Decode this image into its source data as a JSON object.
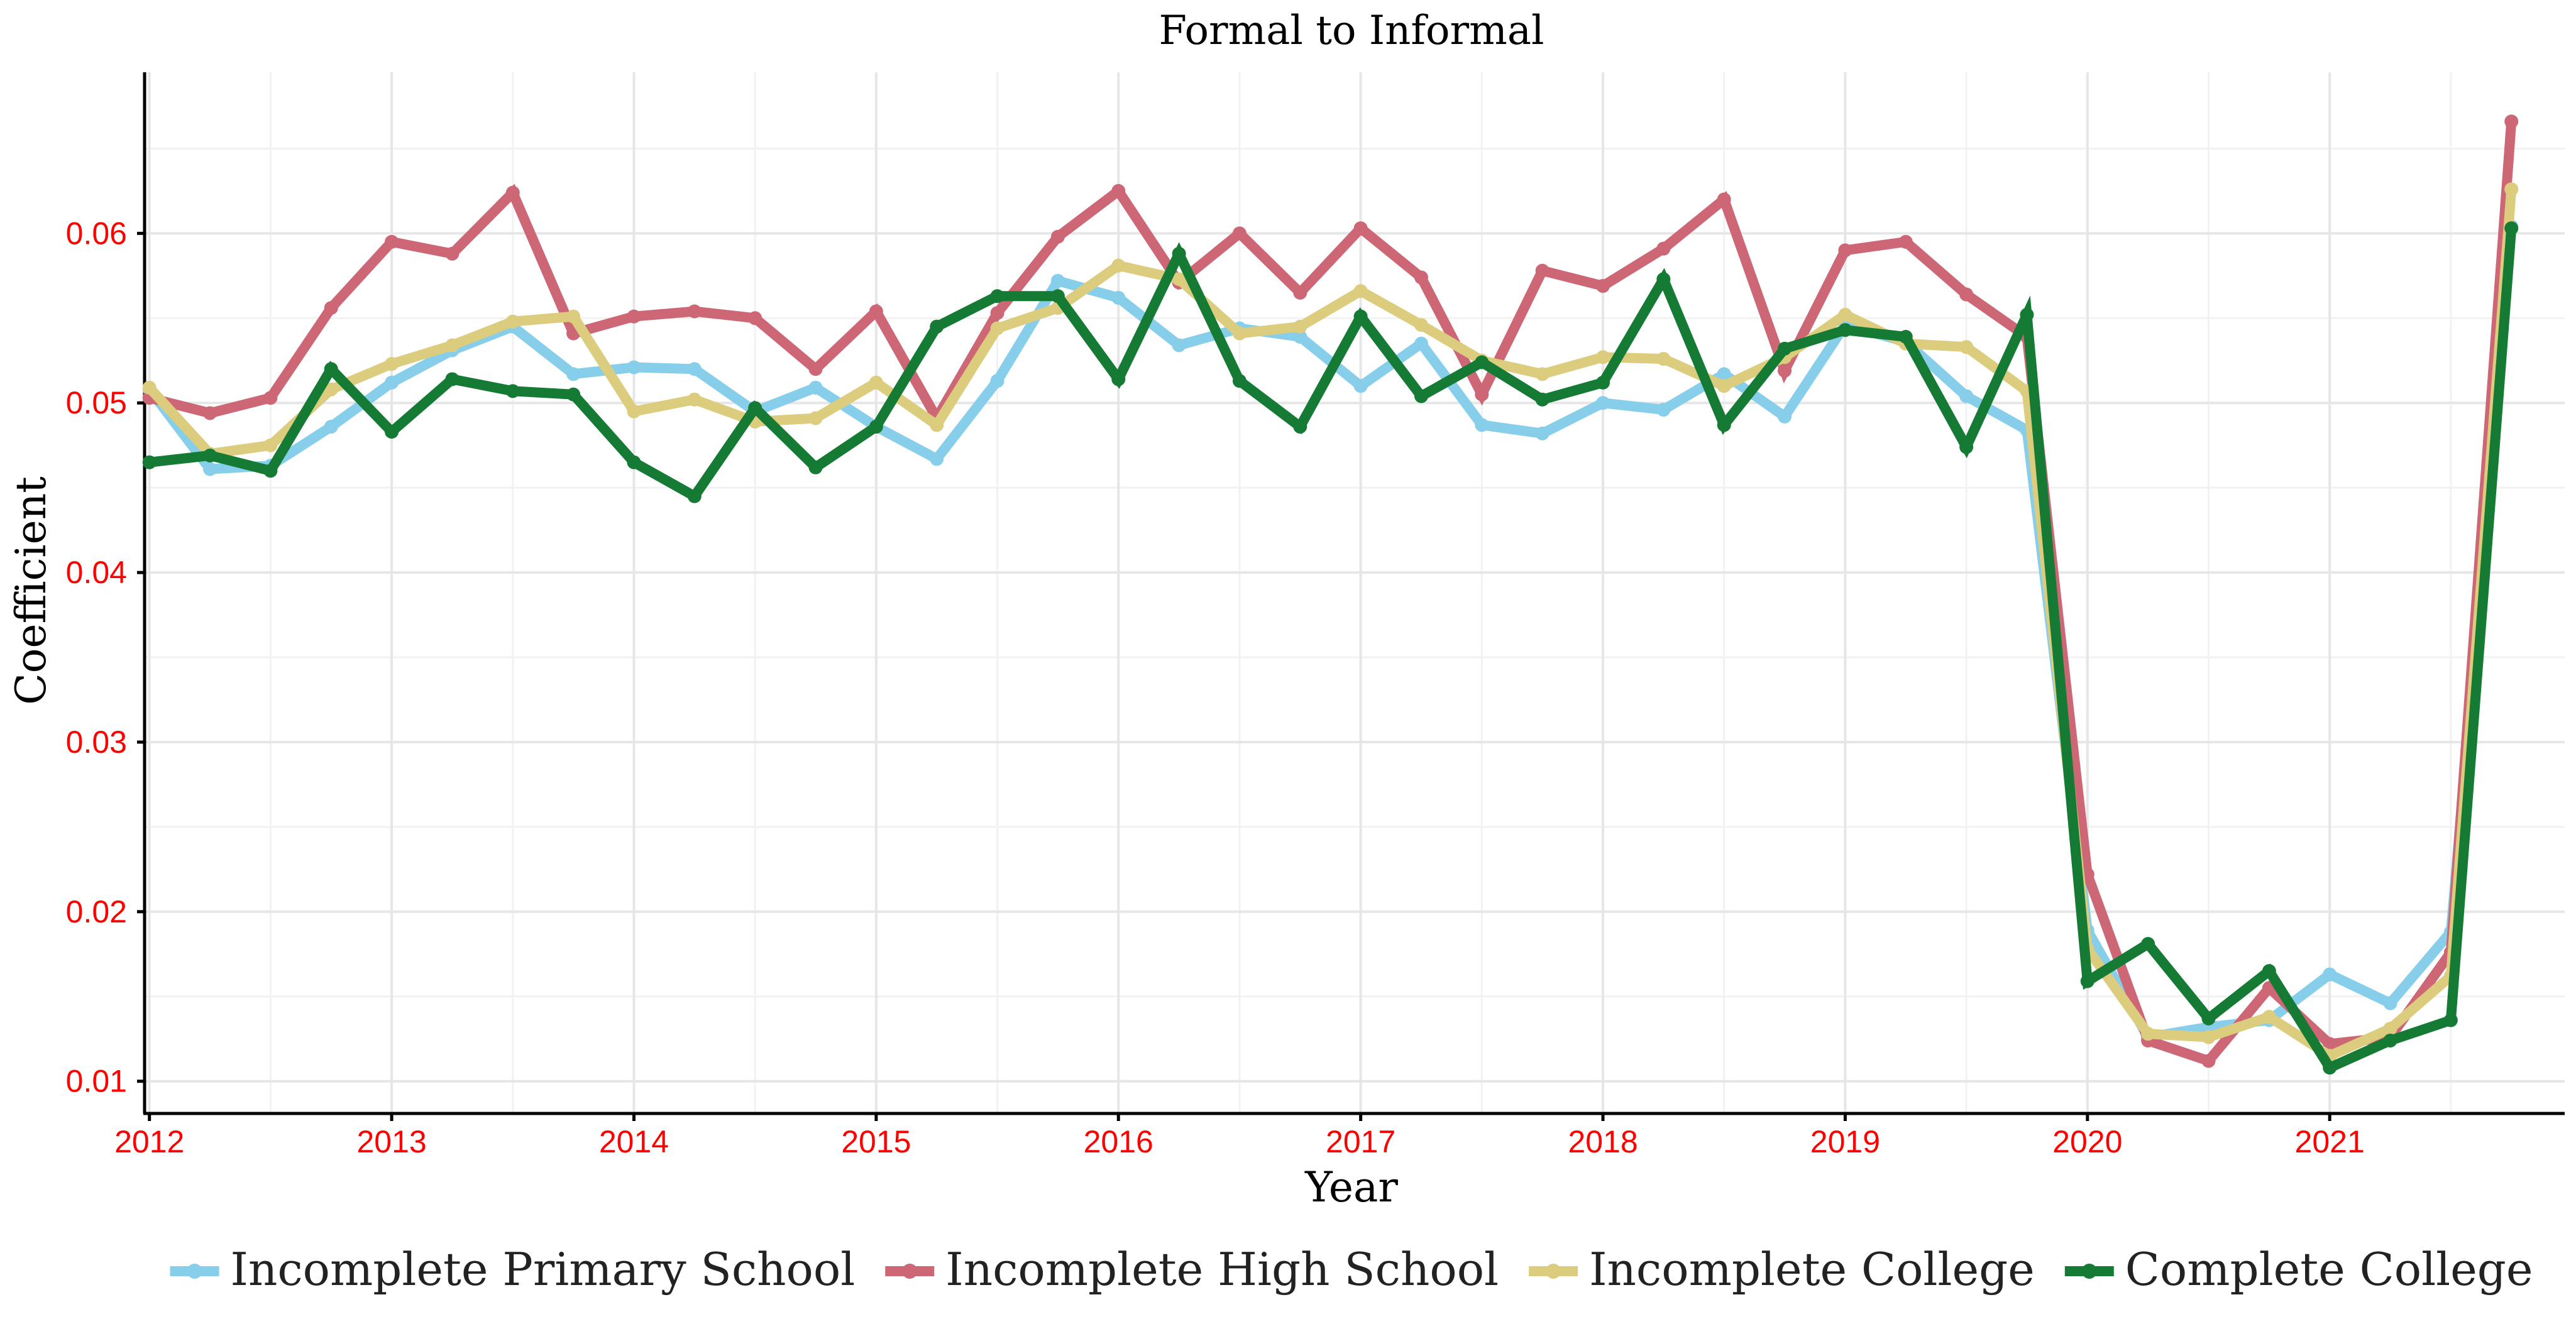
{
  "chart_data": {
    "type": "line",
    "title": "Formal to Informal",
    "xlabel": "Year",
    "ylabel": "Coefficient",
    "xlim": [
      2011.98,
      2021.97
    ],
    "ylim": [
      0.0081,
      0.0695
    ],
    "x_ticks": [
      2012,
      2013,
      2014,
      2015,
      2016,
      2017,
      2018,
      2019,
      2020,
      2021
    ],
    "y_ticks": [
      0.01,
      0.02,
      0.03,
      0.04,
      0.05,
      0.06
    ],
    "y_tick_labels": [
      "0.01",
      "0.02",
      "0.03",
      "0.04",
      "0.05",
      "0.06"
    ],
    "grid": true,
    "legend_position": "bottom",
    "x": [
      2012.0,
      2012.25,
      2012.5,
      2012.75,
      2013.0,
      2013.25,
      2013.5,
      2013.75,
      2014.0,
      2014.25,
      2014.5,
      2014.75,
      2015.0,
      2015.25,
      2015.5,
      2015.75,
      2016.0,
      2016.25,
      2016.5,
      2016.75,
      2017.0,
      2017.25,
      2017.5,
      2017.75,
      2018.0,
      2018.25,
      2018.5,
      2018.75,
      2019.0,
      2019.25,
      2019.5,
      2019.75,
      2020.0,
      2020.25,
      2020.5,
      2020.75,
      2021.0,
      2021.25,
      2021.5,
      2021.75
    ],
    "series": [
      {
        "name": "Incomplete Primary School",
        "color": "#87ceeb",
        "values": [
          0.0508,
          0.0461,
          0.0463,
          0.0486,
          0.0512,
          0.0531,
          0.0545,
          0.0517,
          0.0521,
          0.052,
          0.0495,
          0.0509,
          0.0486,
          0.0467,
          0.0513,
          0.0572,
          0.0562,
          0.0534,
          0.0544,
          0.0539,
          0.051,
          0.0535,
          0.0487,
          0.0482,
          0.05,
          0.0496,
          0.0517,
          0.0492,
          0.0546,
          0.0536,
          0.0504,
          0.0484,
          0.0189,
          0.0126,
          0.0132,
          0.0136,
          0.0163,
          0.0146,
          0.0188,
          0.0604
        ]
      },
      {
        "name": "Incomplete High School",
        "color": "#cd6675",
        "values": [
          0.0503,
          0.0494,
          0.0503,
          0.0556,
          0.0595,
          0.0588,
          0.0624,
          0.0541,
          0.0551,
          0.0554,
          0.055,
          0.052,
          0.0554,
          0.0491,
          0.0553,
          0.0598,
          0.0625,
          0.0571,
          0.06,
          0.0565,
          0.0603,
          0.0574,
          0.0505,
          0.0578,
          0.0569,
          0.0591,
          0.062,
          0.0519,
          0.059,
          0.0595,
          0.0564,
          0.0539,
          0.0222,
          0.0124,
          0.0112,
          0.0155,
          0.0122,
          0.0126,
          0.0176,
          0.0666
        ]
      },
      {
        "name": "Incomplete College",
        "color": "#dccd7e",
        "values": [
          0.0509,
          0.047,
          0.0475,
          0.0508,
          0.0523,
          0.0534,
          0.0548,
          0.0551,
          0.0495,
          0.0502,
          0.0489,
          0.0491,
          0.0512,
          0.0487,
          0.0544,
          0.0556,
          0.0581,
          0.0573,
          0.0541,
          0.0545,
          0.0566,
          0.0546,
          0.0525,
          0.0517,
          0.0527,
          0.0526,
          0.051,
          0.0527,
          0.0552,
          0.0535,
          0.0533,
          0.0507,
          0.0178,
          0.0128,
          0.0126,
          0.0138,
          0.0115,
          0.0131,
          0.0162,
          0.0626
        ]
      },
      {
        "name": "Complete College",
        "color": "#157a34",
        "values": [
          0.0465,
          0.0469,
          0.046,
          0.052,
          0.0483,
          0.0514,
          0.0507,
          0.0505,
          0.0465,
          0.0445,
          0.0497,
          0.0462,
          0.0486,
          0.0545,
          0.0563,
          0.0563,
          0.0514,
          0.0588,
          0.0513,
          0.0486,
          0.0551,
          0.0504,
          0.0524,
          0.0502,
          0.0512,
          0.0573,
          0.0487,
          0.0532,
          0.0543,
          0.0539,
          0.0474,
          0.0552,
          0.0159,
          0.0181,
          0.0137,
          0.0165,
          0.0108,
          0.0124,
          0.0136,
          0.0603
        ]
      }
    ]
  }
}
